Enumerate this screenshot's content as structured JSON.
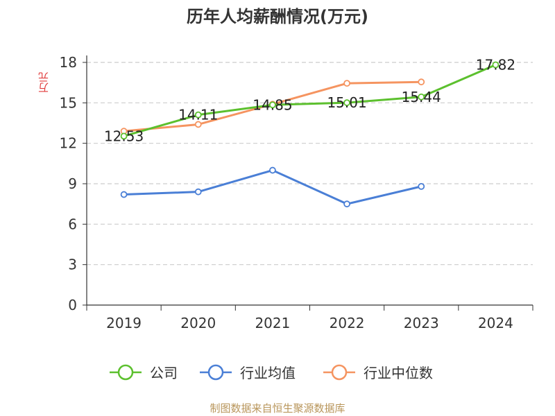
{
  "chart_data": {
    "type": "line",
    "title": "历年人均薪酬情况(万元)",
    "ylabel": "万元",
    "categories": [
      "2019",
      "2020",
      "2021",
      "2022",
      "2023",
      "2024"
    ],
    "ylim": [
      0,
      18
    ],
    "yticks": [
      0,
      3,
      6,
      9,
      12,
      15,
      18
    ],
    "grid": true,
    "legend_position": "bottom",
    "series": [
      {
        "name": "公司",
        "color": "#5cc02e",
        "values": [
          12.53,
          14.11,
          14.85,
          15.01,
          15.44,
          17.82
        ],
        "labels": [
          "12.53",
          "14.11",
          "14.85",
          "15.01",
          "15.44",
          "17.82"
        ]
      },
      {
        "name": "行业均值",
        "color": "#4a7fd6",
        "values": [
          8.2,
          8.4,
          10.0,
          7.5,
          8.8,
          null
        ]
      },
      {
        "name": "行业中位数",
        "color": "#f59460",
        "values": [
          12.9,
          13.4,
          14.9,
          16.45,
          16.55,
          null
        ]
      }
    ],
    "source": "制图数据来自恒生聚源数据库"
  }
}
